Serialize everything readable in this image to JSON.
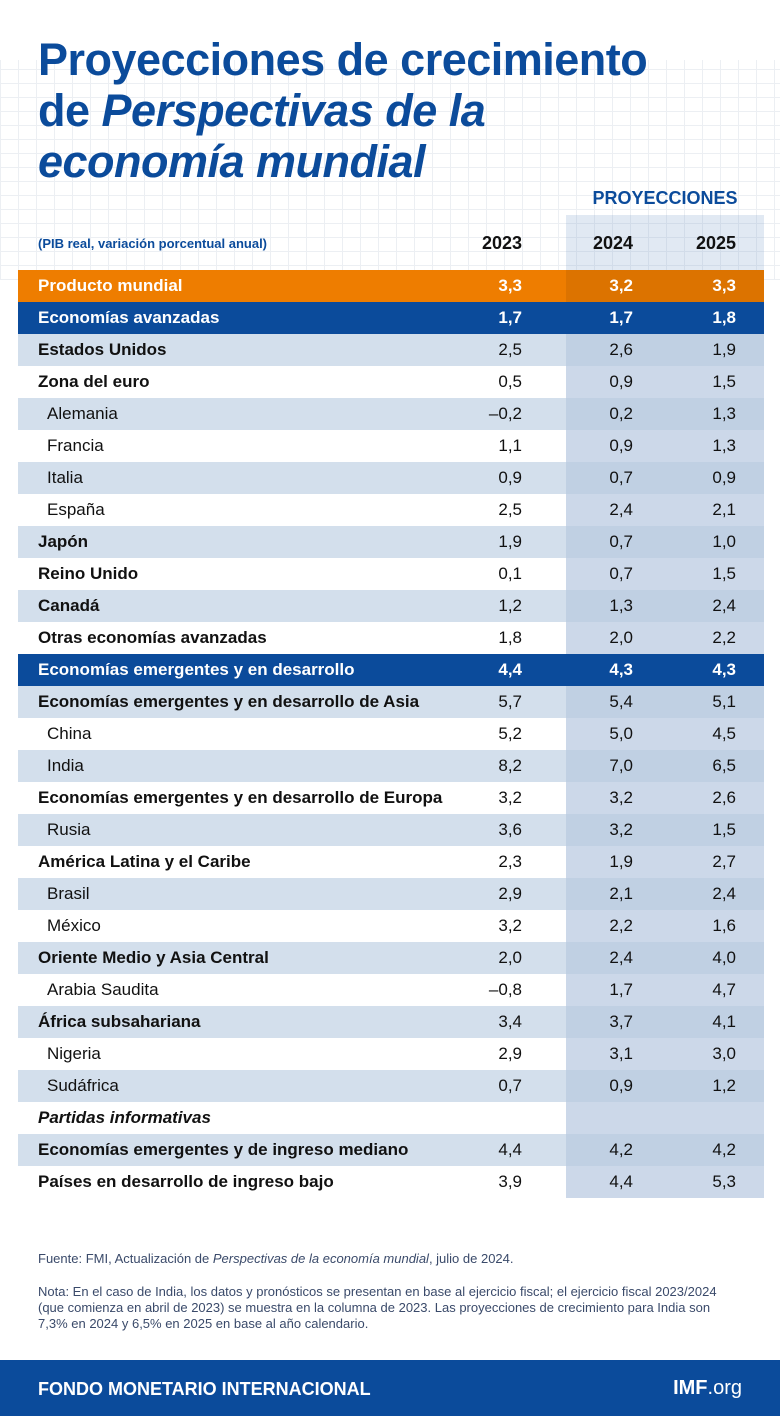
{
  "title": {
    "line1": "Proyecciones de crecimiento",
    "line2_prefix": "de ",
    "line2_italic": "Perspectivas de la",
    "line3_italic": "economía mundial"
  },
  "projections_label": "PROYECCIONES",
  "subtitle": "(PIB real, variación porcentual anual)",
  "years": [
    "2023",
    "2024",
    "2025"
  ],
  "rows": [
    {
      "label": "Producto mundial",
      "values": [
        "3,3",
        "3,2",
        "3,3"
      ],
      "style": "o"
    },
    {
      "label": "Economías avanzadas",
      "values": [
        "1,7",
        "1,7",
        "1,8"
      ],
      "style": "b"
    },
    {
      "label": "Estados Unidos",
      "values": [
        "2,5",
        "2,6",
        "1,9"
      ],
      "style": "s"
    },
    {
      "label": "Zona del euro",
      "values": [
        "0,5",
        "0,9",
        "1,5"
      ],
      "style": ""
    },
    {
      "label": "Alemania",
      "values": [
        "–0,2",
        "0,2",
        "1,3"
      ],
      "style": "s ind"
    },
    {
      "label": "Francia",
      "values": [
        "1,1",
        "0,9",
        "1,3"
      ],
      "style": "ind"
    },
    {
      "label": "Italia",
      "values": [
        "0,9",
        "0,7",
        "0,9"
      ],
      "style": "s ind"
    },
    {
      "label": "España",
      "values": [
        "2,5",
        "2,4",
        "2,1"
      ],
      "style": "ind"
    },
    {
      "label": "Japón",
      "values": [
        "1,9",
        "0,7",
        "1,0"
      ],
      "style": "s"
    },
    {
      "label": "Reino Unido",
      "values": [
        "0,1",
        "0,7",
        "1,5"
      ],
      "style": ""
    },
    {
      "label": "Canadá",
      "values": [
        "1,2",
        "1,3",
        "2,4"
      ],
      "style": "s"
    },
    {
      "label": "Otras economías avanzadas",
      "values": [
        "1,8",
        "2,0",
        "2,2"
      ],
      "style": ""
    },
    {
      "label": "Economías emergentes y en desarrollo",
      "values": [
        "4,4",
        "4,3",
        "4,3"
      ],
      "style": "b"
    },
    {
      "label": "Economías emergentes y en desarrollo de Asia",
      "values": [
        "5,7",
        "5,4",
        "5,1"
      ],
      "style": "s"
    },
    {
      "label": "China",
      "values": [
        "5,2",
        "5,0",
        "4,5"
      ],
      "style": "ind"
    },
    {
      "label": "India",
      "values": [
        "8,2",
        "7,0",
        "6,5"
      ],
      "style": "s ind"
    },
    {
      "label": "Economías emergentes y en desarrollo de Europa",
      "values": [
        "3,2",
        "3,2",
        "2,6"
      ],
      "style": ""
    },
    {
      "label": "Rusia",
      "values": [
        "3,6",
        "3,2",
        "1,5"
      ],
      "style": "s ind"
    },
    {
      "label": "América Latina y el Caribe",
      "values": [
        "2,3",
        "1,9",
        "2,7"
      ],
      "style": ""
    },
    {
      "label": "Brasil",
      "values": [
        "2,9",
        "2,1",
        "2,4"
      ],
      "style": "s ind"
    },
    {
      "label": "México",
      "values": [
        "3,2",
        "2,2",
        "1,6"
      ],
      "style": "ind"
    },
    {
      "label": "Oriente Medio y Asia Central",
      "values": [
        "2,0",
        "2,4",
        "4,0"
      ],
      "style": "s"
    },
    {
      "label": "Arabia Saudita",
      "values": [
        "–0,8",
        "1,7",
        "4,7"
      ],
      "style": "ind"
    },
    {
      "label": "África subsahariana",
      "values": [
        "3,4",
        "3,7",
        "4,1"
      ],
      "style": "s"
    },
    {
      "label": "Nigeria",
      "values": [
        "2,9",
        "3,1",
        "3,0"
      ],
      "style": "ind"
    },
    {
      "label": "Sudáfrica",
      "values": [
        "0,7",
        "0,9",
        "1,2"
      ],
      "style": "s ind"
    },
    {
      "label": "Partidas informativas",
      "values": [
        "",
        "",
        ""
      ],
      "style": "it"
    },
    {
      "label": "Economías emergentes y de ingreso mediano",
      "values": [
        "4,4",
        "4,2",
        "4,2"
      ],
      "style": "s"
    },
    {
      "label": "Países en desarrollo de ingreso bajo",
      "values": [
        "3,9",
        "4,4",
        "5,3"
      ],
      "style": ""
    }
  ],
  "source": {
    "prefix": "Fuente: FMI, Actualización de ",
    "italic": "Perspectivas de la economía mundial",
    "suffix": ", julio de 2024."
  },
  "note": "Nota: En el caso de India, los datos y pronósticos se presentan en base al ejercicio fiscal; el ejercicio fiscal 2023/2024 (que comienza en abril de 2023) se muestra en la columna de 2023. Las proyecciones de crecimiento para India son 7,3% en 2024 y 6,5% en 2025 en base al año calendario.",
  "footer": {
    "org": "FONDO MONETARIO INTERNACIONAL",
    "site_bold": "IMF",
    "site_rest": ".org"
  },
  "colors": {
    "brand_blue": "#0b4b9b",
    "orange": "#ee7d00",
    "stripe": "#d3dfec"
  }
}
